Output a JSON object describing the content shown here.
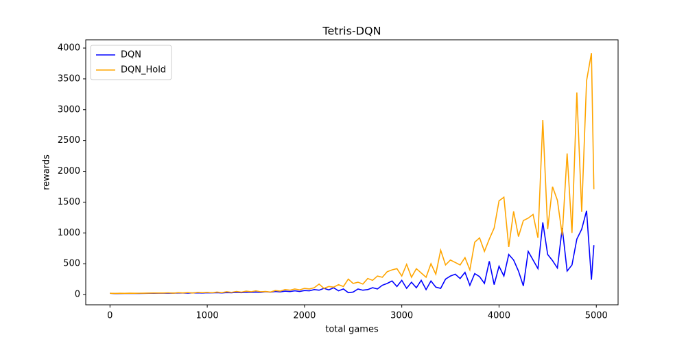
{
  "chart_data": {
    "type": "line",
    "title": "Tetris-DQN",
    "x_label": "total games",
    "y_label": "rewards",
    "x": [
      0,
      50,
      100,
      150,
      200,
      250,
      300,
      350,
      400,
      450,
      500,
      550,
      600,
      650,
      700,
      750,
      800,
      850,
      900,
      950,
      1000,
      1050,
      1100,
      1150,
      1200,
      1250,
      1300,
      1350,
      1400,
      1450,
      1500,
      1550,
      1600,
      1650,
      1700,
      1750,
      1800,
      1850,
      1900,
      1950,
      2000,
      2050,
      2100,
      2150,
      2200,
      2250,
      2300,
      2350,
      2400,
      2450,
      2500,
      2550,
      2600,
      2650,
      2700,
      2750,
      2800,
      2850,
      2900,
      2950,
      3000,
      3050,
      3100,
      3150,
      3200,
      3250,
      3300,
      3350,
      3400,
      3450,
      3500,
      3550,
      3600,
      3650,
      3700,
      3750,
      3800,
      3850,
      3900,
      3950,
      4000,
      4050,
      4100,
      4150,
      4200,
      4250,
      4300,
      4350,
      4400,
      4450,
      4500,
      4550,
      4600,
      4650,
      4700,
      4750,
      4800,
      4850,
      4900,
      4950,
      4975
    ],
    "series": [
      {
        "name": "DQN",
        "color": "#0000ff",
        "values": [
          20,
          15,
          16,
          17,
          18,
          17,
          18,
          19,
          20,
          20,
          22,
          21,
          23,
          22,
          24,
          25,
          23,
          26,
          27,
          25,
          28,
          27,
          30,
          26,
          32,
          28,
          35,
          30,
          38,
          36,
          40,
          35,
          45,
          38,
          50,
          42,
          55,
          48,
          60,
          50,
          65,
          60,
          80,
          70,
          100,
          75,
          110,
          60,
          90,
          30,
          40,
          90,
          70,
          80,
          110,
          90,
          150,
          180,
          220,
          130,
          230,
          100,
          200,
          110,
          230,
          80,
          220,
          120,
          100,
          250,
          300,
          330,
          260,
          360,
          150,
          340,
          290,
          180,
          540,
          160,
          460,
          300,
          650,
          560,
          380,
          140,
          700,
          560,
          420,
          1170,
          650,
          550,
          430,
          1080,
          380,
          480,
          900,
          1060,
          1360,
          240,
          800
        ]
      },
      {
        "name": "DQN_Hold",
        "color": "#ffa500",
        "values": [
          20,
          18,
          20,
          19,
          22,
          20,
          21,
          22,
          23,
          25,
          25,
          24,
          28,
          22,
          30,
          26,
          32,
          24,
          35,
          30,
          35,
          28,
          40,
          30,
          45,
          35,
          50,
          38,
          55,
          45,
          60,
          45,
          50,
          40,
          65,
          55,
          80,
          70,
          90,
          75,
          100,
          90,
          110,
          170,
          100,
          130,
          120,
          160,
          130,
          250,
          180,
          200,
          170,
          260,
          230,
          300,
          280,
          370,
          400,
          420,
          300,
          490,
          280,
          420,
          350,
          280,
          500,
          330,
          720,
          480,
          560,
          520,
          480,
          600,
          400,
          850,
          920,
          700,
          900,
          1080,
          1520,
          1580,
          770,
          1350,
          940,
          1200,
          1240,
          1300,
          920,
          2830,
          1060,
          1750,
          1530,
          960,
          2290,
          1000,
          3280,
          1340,
          3470,
          3920,
          1710
        ]
      }
    ],
    "xlim": [
      -249,
      5224
    ],
    "ylim": [
      -167,
      4134
    ],
    "xticks": [
      0,
      1000,
      2000,
      3000,
      4000,
      5000
    ],
    "yticks": [
      0,
      500,
      1000,
      1500,
      2000,
      2500,
      3000,
      3500,
      4000
    ],
    "legend": "upper left"
  }
}
